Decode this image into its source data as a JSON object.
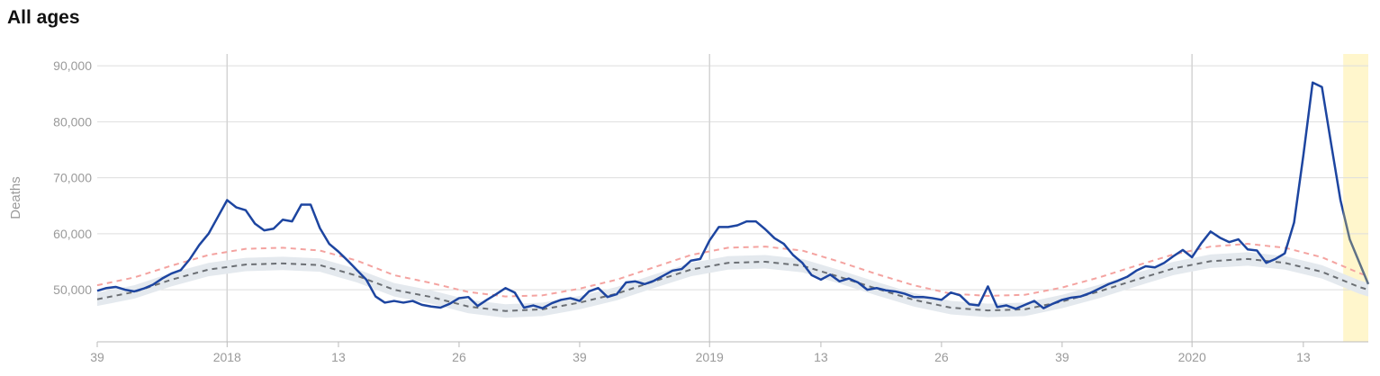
{
  "chart_data": {
    "type": "line",
    "title": "All ages",
    "ylabel": "Deaths",
    "xlim": [
      0,
      137
    ],
    "ylim": [
      40700,
      92100
    ],
    "yticks": [
      {
        "value": 50000,
        "label": "50,000"
      },
      {
        "value": 60000,
        "label": "60,000"
      },
      {
        "value": 70000,
        "label": "70,000"
      },
      {
        "value": 80000,
        "label": "80,000"
      },
      {
        "value": 90000,
        "label": "90,000"
      }
    ],
    "xticks": [
      {
        "value": 0,
        "label": "39"
      },
      {
        "value": 14,
        "label": "2018",
        "grid": true
      },
      {
        "value": 26,
        "label": "13"
      },
      {
        "value": 39,
        "label": "26"
      },
      {
        "value": 52,
        "label": "39"
      },
      {
        "value": 66,
        "label": "2019",
        "grid": true
      },
      {
        "value": 78,
        "label": "13"
      },
      {
        "value": 91,
        "label": "26"
      },
      {
        "value": 104,
        "label": "39"
      },
      {
        "value": 118,
        "label": "2020",
        "grid": true
      },
      {
        "value": 130,
        "label": "13"
      }
    ],
    "grid": true,
    "highlight_x": [
      134.3,
      137
    ],
    "highlight_color": "#fff6cc",
    "band": {
      "color": "#e4e9ee",
      "x": [
        0,
        4,
        8,
        12,
        16,
        20,
        24,
        28,
        32,
        36,
        40,
        44,
        48,
        52,
        56,
        60,
        64,
        68,
        72,
        76,
        80,
        84,
        88,
        92,
        96,
        100,
        104,
        108,
        112,
        116,
        120,
        124,
        128,
        132,
        136,
        137
      ],
      "lower": [
        47100,
        48400,
        50600,
        52400,
        53300,
        53500,
        53200,
        51300,
        48800,
        47500,
        45800,
        45000,
        45300,
        46500,
        48100,
        50300,
        52400,
        53600,
        53800,
        53100,
        51100,
        49000,
        47000,
        45600,
        45100,
        45300,
        46700,
        48500,
        50600,
        52600,
        53900,
        54300,
        53600,
        52000,
        49300,
        48800
      ],
      "upper": [
        49500,
        50800,
        53000,
        54800,
        55700,
        55900,
        55600,
        53700,
        51200,
        49900,
        48200,
        47400,
        47700,
        48900,
        50500,
        52700,
        54800,
        56000,
        56200,
        55500,
        53500,
        51400,
        49400,
        48000,
        47500,
        47700,
        49100,
        50900,
        53000,
        55000,
        56300,
        56700,
        56000,
        54400,
        51700,
        51200
      ]
    },
    "series": [
      {
        "color": "#f4a3a0",
        "dash": "6,5",
        "width": 2,
        "x": [
          0,
          4,
          8,
          12,
          16,
          20,
          24,
          28,
          32,
          36,
          40,
          44,
          48,
          52,
          56,
          60,
          64,
          68,
          72,
          76,
          80,
          84,
          88,
          92,
          96,
          100,
          104,
          108,
          112,
          116,
          120,
          124,
          128,
          132,
          136,
          137
        ],
        "values": [
          50800,
          52200,
          54300,
          56200,
          57300,
          57500,
          57000,
          55200,
          52600,
          51200,
          49600,
          48800,
          49000,
          50200,
          51800,
          54000,
          56200,
          57500,
          57700,
          57000,
          55000,
          52800,
          50800,
          49300,
          48900,
          49100,
          50400,
          52200,
          54300,
          56300,
          57700,
          58200,
          57500,
          55800,
          53000,
          52400
        ]
      },
      {
        "color": "#6b6f74",
        "dash": "6,5",
        "width": 2,
        "x": [
          0,
          4,
          8,
          12,
          16,
          20,
          24,
          28,
          32,
          36,
          40,
          44,
          48,
          52,
          56,
          60,
          64,
          68,
          72,
          76,
          80,
          84,
          88,
          92,
          96,
          100,
          104,
          108,
          112,
          116,
          120,
          124,
          128,
          132,
          136,
          137
        ],
        "values": [
          48300,
          49600,
          51800,
          53600,
          54500,
          54700,
          54400,
          52500,
          50000,
          48700,
          47000,
          46200,
          46500,
          47700,
          49300,
          51500,
          53600,
          54800,
          55000,
          54300,
          52300,
          50200,
          48200,
          46800,
          46300,
          46500,
          47900,
          49700,
          51800,
          53800,
          55100,
          55500,
          54800,
          53200,
          50500,
          50000
        ]
      },
      {
        "color": "#1d45a0",
        "highlight_color": "#5f7186",
        "width": 2.5,
        "x": [
          0,
          1,
          2,
          3,
          4,
          5,
          6,
          7,
          8,
          9,
          10,
          11,
          12,
          13,
          14,
          15,
          16,
          17,
          18,
          19,
          20,
          21,
          22,
          23,
          24,
          25,
          26,
          27,
          28,
          29,
          30,
          31,
          32,
          33,
          34,
          35,
          36,
          37,
          38,
          39,
          40,
          41,
          42,
          43,
          44,
          45,
          46,
          47,
          48,
          49,
          50,
          51,
          52,
          53,
          54,
          55,
          56,
          57,
          58,
          59,
          60,
          61,
          62,
          63,
          64,
          65,
          66,
          67,
          68,
          69,
          70,
          71,
          72,
          73,
          74,
          75,
          76,
          77,
          78,
          79,
          80,
          81,
          82,
          83,
          84,
          85,
          86,
          87,
          88,
          89,
          90,
          91,
          92,
          93,
          94,
          95,
          96,
          97,
          98,
          99,
          100,
          101,
          102,
          103,
          104,
          105,
          106,
          107,
          108,
          109,
          110,
          111,
          112,
          113,
          114,
          115,
          116,
          117,
          118,
          119,
          120,
          121,
          122,
          123,
          124,
          125,
          126,
          127,
          128,
          129,
          130,
          131,
          132,
          133,
          134,
          135,
          136,
          137
        ],
        "values": [
          49800,
          50300,
          50500,
          50000,
          49700,
          50200,
          50900,
          52000,
          52900,
          53500,
          55500,
          58000,
          60000,
          63000,
          66000,
          64700,
          64200,
          61800,
          60600,
          60900,
          62500,
          62200,
          65200,
          65200,
          61000,
          58200,
          56800,
          55200,
          53500,
          51800,
          48800,
          47700,
          48000,
          47700,
          48000,
          47300,
          47000,
          46800,
          47500,
          48500,
          48700,
          47100,
          48200,
          49200,
          50300,
          49500,
          46800,
          47200,
          46700,
          47600,
          48200,
          48500,
          48000,
          49700,
          50300,
          48700,
          49200,
          51300,
          51500,
          51000,
          51600,
          52500,
          53400,
          53700,
          55200,
          55500,
          58800,
          61200,
          61200,
          61500,
          62200,
          62200,
          60800,
          59200,
          58200,
          56200,
          54800,
          52600,
          51800,
          52700,
          51500,
          52000,
          51300,
          50000,
          50300,
          49900,
          49700,
          49300,
          48700,
          48700,
          48500,
          48200,
          49500,
          49000,
          47400,
          47200,
          50600,
          46900,
          47200,
          46600,
          47300,
          48000,
          46700,
          47500,
          48200,
          48600,
          48800,
          49400,
          50200,
          51000,
          51600,
          52300,
          53400,
          54200,
          54000,
          54800,
          56000,
          57100,
          55800,
          58300,
          60400,
          59300,
          58500,
          59000,
          57200,
          57000,
          54800,
          55500,
          56500,
          62000,
          74000,
          87000,
          86200,
          76000,
          66000,
          59000,
          55000,
          51000
        ]
      }
    ]
  }
}
